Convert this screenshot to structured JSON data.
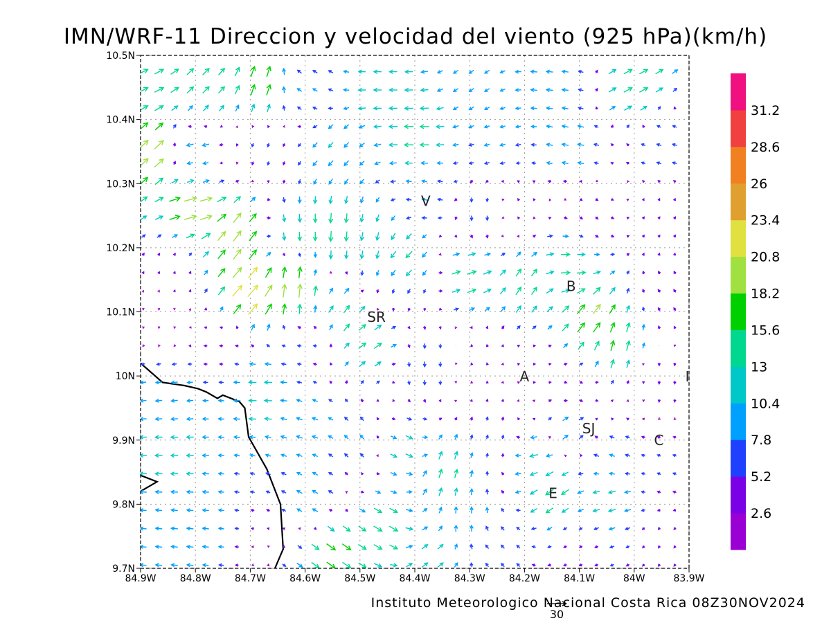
{
  "chart_data": {
    "type": "vector-field",
    "title": "IMN/WRF-11 Direccion y velocidad del viento (925 hPa)(km/h)",
    "credit": "Instituto Meteorologico Nacional Costa Rica 08Z30NOV2024",
    "reference_vector_label": "30",
    "xlim": [
      -84.9,
      -83.9
    ],
    "ylim": [
      9.7,
      10.5
    ],
    "x_ticks": [
      {
        "value": -84.9,
        "label": "84.9W"
      },
      {
        "value": -84.8,
        "label": "84.8W"
      },
      {
        "value": -84.7,
        "label": "84.7W"
      },
      {
        "value": -84.6,
        "label": "84.6W"
      },
      {
        "value": -84.5,
        "label": "84.5W"
      },
      {
        "value": -84.4,
        "label": "84.4W"
      },
      {
        "value": -84.3,
        "label": "84.3W"
      },
      {
        "value": -84.2,
        "label": "84.2W"
      },
      {
        "value": -84.1,
        "label": "84.1W"
      },
      {
        "value": -84.0,
        "label": "84W"
      },
      {
        "value": -83.9,
        "label": "83.9W"
      }
    ],
    "y_ticks": [
      {
        "value": 9.7,
        "label": "9.7N"
      },
      {
        "value": 9.8,
        "label": "9.8N"
      },
      {
        "value": 9.9,
        "label": "9.9N"
      },
      {
        "value": 10.0,
        "label": "10N"
      },
      {
        "value": 10.1,
        "label": "10.1N"
      },
      {
        "value": 10.2,
        "label": "10.2N"
      },
      {
        "value": 10.3,
        "label": "10.3N"
      },
      {
        "value": 10.4,
        "label": "10.4N"
      },
      {
        "value": 10.5,
        "label": "10.5N"
      }
    ],
    "grid": true,
    "colorbar": {
      "labels": [
        "2.6",
        "5.2",
        "7.8",
        "10.4",
        "13",
        "15.6",
        "18.2",
        "20.8",
        "23.4",
        "26",
        "28.6",
        "31.2"
      ],
      "colors": [
        "#9a00d4",
        "#7a00e6",
        "#2040ff",
        "#00a0ff",
        "#00c8c8",
        "#00d890",
        "#00d000",
        "#a0e040",
        "#e0e040",
        "#e0a030",
        "#f08020",
        "#f04040",
        "#f01080"
      ]
    },
    "places": [
      {
        "label": "V",
        "lon": -84.38,
        "lat": 10.273
      },
      {
        "label": "SR",
        "lon": -84.47,
        "lat": 10.092
      },
      {
        "label": "B",
        "lon": -84.115,
        "lat": 10.14
      },
      {
        "label": "A",
        "lon": -84.2,
        "lat": 9.999
      },
      {
        "label": "SJ",
        "lon": -84.083,
        "lat": 9.918
      },
      {
        "label": "C",
        "lon": -83.955,
        "lat": 9.9
      },
      {
        "label": "E",
        "lon": -84.148,
        "lat": 9.817
      },
      {
        "label": "I",
        "lon": -83.903,
        "lat": 9.999
      }
    ],
    "coastline": [
      [
        -84.9,
        10.02
      ],
      [
        -84.86,
        9.99
      ],
      [
        -84.82,
        9.985
      ],
      [
        -84.795,
        9.98
      ],
      [
        -84.78,
        9.975
      ],
      [
        -84.76,
        9.965
      ],
      [
        -84.75,
        9.97
      ],
      [
        -84.72,
        9.96
      ],
      [
        -84.71,
        9.95
      ],
      [
        -84.703,
        9.905
      ],
      [
        -84.67,
        9.855
      ],
      [
        -84.645,
        9.8
      ],
      [
        -84.64,
        9.73
      ],
      [
        -84.655,
        9.7
      ]
    ],
    "gulf_coast": [
      [
        -84.9,
        9.82
      ],
      [
        -84.87,
        9.835
      ],
      [
        -84.9,
        9.845
      ]
    ],
    "wind_regions": [
      {
        "lon": -84.88,
        "lat": 10.45,
        "u": 14,
        "v": 7
      },
      {
        "lon": -84.78,
        "lat": 10.45,
        "u": 10,
        "v": 10
      },
      {
        "lon": -84.68,
        "lat": 10.45,
        "u": 6,
        "v": 17
      },
      {
        "lon": -84.6,
        "lat": 10.45,
        "u": -7,
        "v": 4
      },
      {
        "lon": -84.45,
        "lat": 10.44,
        "u": -12,
        "v": 0
      },
      {
        "lon": -84.3,
        "lat": 10.45,
        "u": -7,
        "v": -5
      },
      {
        "lon": -84.15,
        "lat": 10.46,
        "u": -10,
        "v": 1
      },
      {
        "lon": -84.0,
        "lat": 10.45,
        "u": 13,
        "v": 7
      },
      {
        "lon": -84.88,
        "lat": 10.35,
        "u": 15,
        "v": 14
      },
      {
        "lon": -84.8,
        "lat": 10.35,
        "u": -12,
        "v": -3
      },
      {
        "lon": -84.68,
        "lat": 10.36,
        "u": -2,
        "v": -6
      },
      {
        "lon": -84.55,
        "lat": 10.35,
        "u": -7,
        "v": -8
      },
      {
        "lon": -84.4,
        "lat": 10.38,
        "u": -14,
        "v": 0
      },
      {
        "lon": -84.25,
        "lat": 10.36,
        "u": -8,
        "v": -2
      },
      {
        "lon": -84.12,
        "lat": 10.36,
        "u": -10,
        "v": 2
      },
      {
        "lon": -83.95,
        "lat": 10.36,
        "u": -7,
        "v": 2
      },
      {
        "lon": -84.8,
        "lat": 10.27,
        "u": 20,
        "v": 5
      },
      {
        "lon": -84.72,
        "lat": 10.22,
        "u": 12,
        "v": 16
      },
      {
        "lon": -84.62,
        "lat": 10.22,
        "u": 1,
        "v": -14
      },
      {
        "lon": -84.55,
        "lat": 10.22,
        "u": -1,
        "v": -16
      },
      {
        "lon": -84.48,
        "lat": 10.2,
        "u": -2,
        "v": -13
      },
      {
        "lon": -84.38,
        "lat": 10.28,
        "u": -8,
        "v": 2
      },
      {
        "lon": -84.42,
        "lat": 10.18,
        "u": -10,
        "v": -10
      },
      {
        "lon": -84.28,
        "lat": 10.25,
        "u": 0,
        "v": -8
      },
      {
        "lon": -84.22,
        "lat": 10.27,
        "u": -2,
        "v": 3
      },
      {
        "lon": -84.08,
        "lat": 10.24,
        "u": 4,
        "v": -3
      },
      {
        "lon": -83.95,
        "lat": 10.24,
        "u": 2,
        "v": 3
      },
      {
        "lon": -84.84,
        "lat": 10.16,
        "u": 1,
        "v": 3
      },
      {
        "lon": -84.7,
        "lat": 10.13,
        "u": 16,
        "v": 18
      },
      {
        "lon": -84.62,
        "lat": 10.14,
        "u": 2,
        "v": 22
      },
      {
        "lon": -84.52,
        "lat": 10.1,
        "u": 9,
        "v": 12
      },
      {
        "lon": -84.45,
        "lat": 10.13,
        "u": -2,
        "v": -6
      },
      {
        "lon": -84.3,
        "lat": 10.16,
        "u": 14,
        "v": 5
      },
      {
        "lon": -84.2,
        "lat": 10.14,
        "u": 8,
        "v": 12
      },
      {
        "lon": -84.12,
        "lat": 10.17,
        "u": 14,
        "v": 0
      },
      {
        "lon": -84.08,
        "lat": 10.09,
        "u": 12,
        "v": 15
      },
      {
        "lon": -84.03,
        "lat": 10.05,
        "u": 4,
        "v": 16
      },
      {
        "lon": -83.95,
        "lat": 10.12,
        "u": -3,
        "v": 4
      },
      {
        "lon": -84.86,
        "lat": 10.08,
        "u": 0,
        "v": -2
      },
      {
        "lon": -84.75,
        "lat": 10.05,
        "u": -5,
        "v": 0
      },
      {
        "lon": -84.6,
        "lat": 10.05,
        "u": -6,
        "v": 0
      },
      {
        "lon": -84.48,
        "lat": 10.06,
        "u": 12,
        "v": 9
      },
      {
        "lon": -84.38,
        "lat": 10.02,
        "u": 0,
        "v": -8
      },
      {
        "lon": -84.28,
        "lat": 10.03,
        "u": -1,
        "v": 3
      },
      {
        "lon": -84.18,
        "lat": 10.02,
        "u": 3,
        "v": 0
      },
      {
        "lon": -84.1,
        "lat": 9.97,
        "u": 4,
        "v": -3
      },
      {
        "lon": -83.95,
        "lat": 10.0,
        "u": 0,
        "v": -5
      },
      {
        "lon": -84.85,
        "lat": 9.97,
        "u": -10,
        "v": -1
      },
      {
        "lon": -84.85,
        "lat": 9.88,
        "u": -11,
        "v": 0
      },
      {
        "lon": -84.85,
        "lat": 9.76,
        "u": -10,
        "v": 1
      },
      {
        "lon": -84.68,
        "lat": 9.98,
        "u": -12,
        "v": 0
      },
      {
        "lon": -84.6,
        "lat": 9.92,
        "u": -9,
        "v": 3
      },
      {
        "lon": -84.58,
        "lat": 9.8,
        "u": -9,
        "v": 5
      },
      {
        "lon": -84.55,
        "lat": 9.74,
        "u": 14,
        "v": -10
      },
      {
        "lon": -84.45,
        "lat": 9.76,
        "u": 13,
        "v": -8
      },
      {
        "lon": -84.5,
        "lat": 9.9,
        "u": -6,
        "v": 6
      },
      {
        "lon": -84.42,
        "lat": 9.88,
        "u": 11,
        "v": -6
      },
      {
        "lon": -84.35,
        "lat": 9.85,
        "u": 4,
        "v": 14
      },
      {
        "lon": -84.3,
        "lat": 9.78,
        "u": 0,
        "v": 10
      },
      {
        "lon": -84.38,
        "lat": 9.72,
        "u": 9,
        "v": 7
      },
      {
        "lon": -84.25,
        "lat": 9.9,
        "u": 2,
        "v": 6
      },
      {
        "lon": -84.18,
        "lat": 9.88,
        "u": -13,
        "v": -3
      },
      {
        "lon": -84.15,
        "lat": 9.82,
        "u": -12,
        "v": -9
      },
      {
        "lon": -84.12,
        "lat": 9.92,
        "u": 10,
        "v": 7
      },
      {
        "lon": -84.05,
        "lat": 9.88,
        "u": -8,
        "v": 3
      },
      {
        "lon": -84.05,
        "lat": 9.8,
        "u": -11,
        "v": -3
      },
      {
        "lon": -83.95,
        "lat": 9.85,
        "u": -5,
        "v": 2
      },
      {
        "lon": -84.25,
        "lat": 9.74,
        "u": -5,
        "v": 5
      },
      {
        "lon": -84.1,
        "lat": 9.74,
        "u": -4,
        "v": -2
      },
      {
        "lon": -83.95,
        "lat": 9.74,
        "u": -2,
        "v": -3
      }
    ]
  }
}
